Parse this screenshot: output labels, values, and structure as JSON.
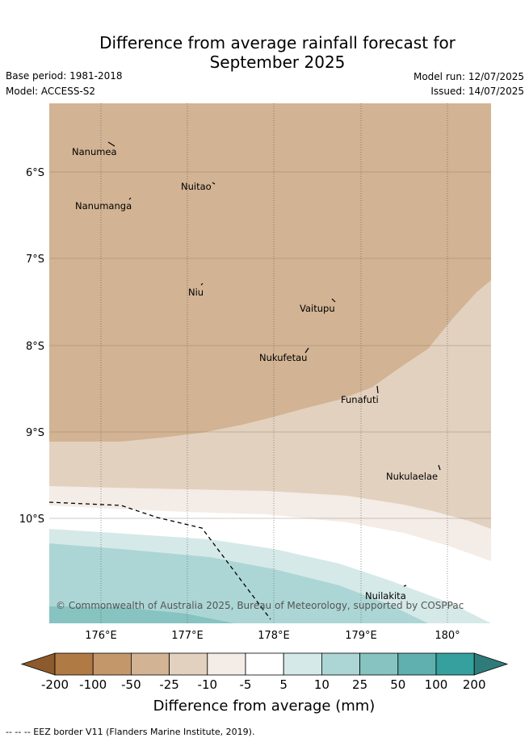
{
  "title_line1": "Difference from average rainfall forecast for",
  "title_line2": "September 2025",
  "base_period": "Base period: 1981-2018",
  "model": "Model: ACCESS-S2",
  "model_run": "Model run: 12/07/2025",
  "issued": "Issued: 14/07/2025",
  "lat_labels": [
    "6°S",
    "7°S",
    "8°S",
    "9°S",
    "10°S"
  ],
  "lon_labels": [
    "176°E",
    "177°E",
    "178°E",
    "179°E",
    "180°"
  ],
  "places": [
    {
      "name": "Nanumea"
    },
    {
      "name": "Nuitao"
    },
    {
      "name": "Nanumanga"
    },
    {
      "name": "Niu"
    },
    {
      "name": "Vaitupu"
    },
    {
      "name": "Nukufetau"
    },
    {
      "name": "Funafuti"
    },
    {
      "name": "Nukulaelae"
    },
    {
      "name": "Nuilakita"
    }
  ],
  "copyright": "© Commonwealth of Australia 2025, Bureau of Meteorology, supported by COSPPac",
  "colorbar": {
    "ticks": [
      "-200",
      "-100",
      "-50",
      "-25",
      "-10",
      "-5",
      "5",
      "10",
      "25",
      "50",
      "100",
      "200"
    ],
    "colors": [
      "#8c5a2c",
      "#b07a44",
      "#c4976a",
      "#d2b393",
      "#e3d1bf",
      "#f4ece6",
      "#ffffff",
      "#d5e9e8",
      "#acd6d5",
      "#86c3c1",
      "#5fb0ae",
      "#35a09d",
      "#2f7b7a"
    ],
    "label": "Difference from average (mm)"
  },
  "legend_note": "-- -- -- EEZ border V11 (Flanders Marine Institute, 2019)."
}
